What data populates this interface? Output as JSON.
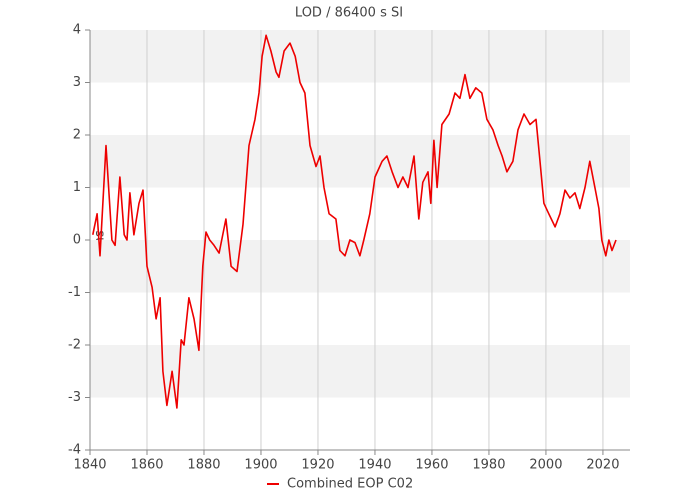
{
  "chart_data": {
    "type": "line",
    "title": "LOD / 86400 s SI",
    "y_label": "ms",
    "x": [
      1841,
      1842.5,
      1843.5,
      1845.6,
      1847.7,
      1848.8,
      1850.5,
      1852,
      1853,
      1854,
      1855.4,
      1857.2,
      1858.6,
      1860,
      1861.8,
      1863.2,
      1864.6,
      1865.6,
      1867,
      1868.8,
      1870.5,
      1872,
      1873,
      1874.7,
      1876.5,
      1878.2,
      1879.6,
      1880.7,
      1882,
      1883.5,
      1885.3,
      1887.7,
      1889.5,
      1891.6,
      1893.7,
      1895.8,
      1897.9,
      1899.3,
      1900.4,
      1901.8,
      1903.5,
      1905.3,
      1906.3,
      1908.1,
      1910.2,
      1912,
      1913.7,
      1915.4,
      1917.2,
      1919.3,
      1920.7,
      1922.1,
      1923.9,
      1926.3,
      1927.7,
      1929.5,
      1931.2,
      1933,
      1934.7,
      1936.1,
      1938.2,
      1940,
      1942.5,
      1944.2,
      1946,
      1948.1,
      1949.8,
      1951.6,
      1953.7,
      1955.4,
      1956.8,
      1958.6,
      1959.6,
      1960.7,
      1961.8,
      1963.5,
      1966,
      1968.1,
      1969.8,
      1971.6,
      1973.3,
      1975.4,
      1977.5,
      1979.3,
      1981.4,
      1983.2,
      1984.6,
      1986.3,
      1988.4,
      1990.2,
      1992.3,
      1994.4,
      1996.5,
      1997.9,
      1999.3,
      2001,
      2003.2,
      2004.9,
      2006.7,
      2008.4,
      2010.2,
      2011.9,
      2013.7,
      2015.4,
      2017.2,
      2018.6,
      2019.6,
      2021,
      2022.1,
      2023.2,
      2024.6
    ],
    "series": [
      {
        "name": "Combined EOP C02",
        "color": "#ee0000",
        "values": [
          0.1,
          0.5,
          -0.3,
          1.8,
          0.0,
          -0.1,
          1.2,
          0.1,
          0.0,
          0.9,
          0.1,
          0.7,
          0.95,
          -0.5,
          -0.9,
          -1.5,
          -1.1,
          -2.5,
          -3.15,
          -2.5,
          -3.2,
          -1.9,
          -2.0,
          -1.1,
          -1.5,
          -2.1,
          -0.5,
          0.15,
          0.0,
          -0.1,
          -0.25,
          0.4,
          -0.5,
          -0.6,
          0.3,
          1.8,
          2.3,
          2.8,
          3.5,
          3.9,
          3.6,
          3.2,
          3.1,
          3.6,
          3.75,
          3.5,
          3.0,
          2.8,
          1.8,
          1.4,
          1.6,
          1.0,
          0.5,
          0.4,
          -0.2,
          -0.3,
          0.0,
          -0.05,
          -0.3,
          0.0,
          0.5,
          1.2,
          1.5,
          1.6,
          1.3,
          1.0,
          1.2,
          1.0,
          1.6,
          0.4,
          1.1,
          1.3,
          0.7,
          1.9,
          1.0,
          2.2,
          2.4,
          2.8,
          2.7,
          3.15,
          2.7,
          2.9,
          2.8,
          2.3,
          2.1,
          1.8,
          1.6,
          1.3,
          1.5,
          2.1,
          2.4,
          2.2,
          2.3,
          1.5,
          0.7,
          0.5,
          0.25,
          0.5,
          0.95,
          0.8,
          0.9,
          0.6,
          1.0,
          1.5,
          1.0,
          0.6,
          0.0,
          -0.3,
          0.0,
          -0.2,
          0.0
        ]
      }
    ],
    "xlim": [
      1840,
      2029.5
    ],
    "xticks": [
      1840,
      1860,
      1880,
      1900,
      1920,
      1940,
      1960,
      1980,
      2000,
      2020
    ],
    "ylim": [
      -4,
      4
    ],
    "yticks": [
      -4,
      -3,
      -2,
      -1,
      0,
      1,
      2,
      3,
      4
    ],
    "grid": true,
    "legend": "bottom"
  }
}
